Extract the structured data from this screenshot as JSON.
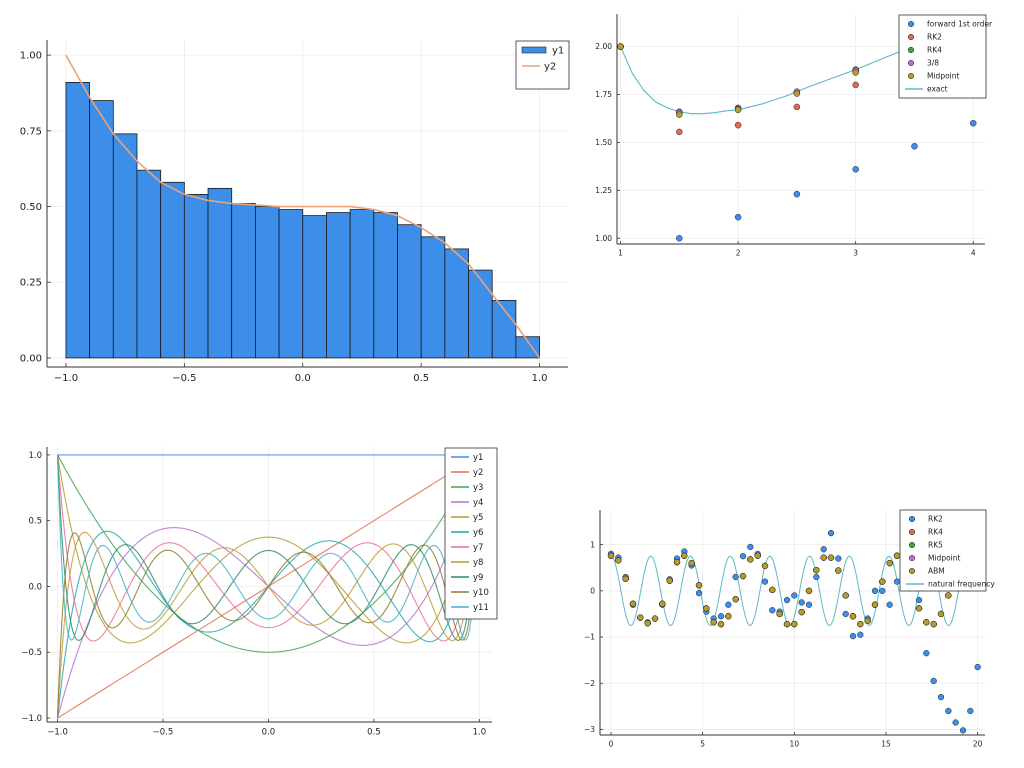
{
  "chart_data": [
    {
      "type": "bar",
      "title": "",
      "xlim": [
        -1.08,
        1.12
      ],
      "ylim": [
        -0.03,
        1.05
      ],
      "xticks": [
        -1.0,
        -0.5,
        0.0,
        0.5,
        1.0
      ],
      "xtick_labels": [
        "−1.0",
        "−0.5",
        "0.0",
        "0.5",
        "1.0"
      ],
      "yticks": [
        0.0,
        0.25,
        0.5,
        0.75,
        1.0
      ],
      "ytick_labels": [
        "0.00",
        "0.25",
        "0.50",
        "0.75",
        "1.00"
      ],
      "grid": true,
      "legend": "top-right",
      "bin_edges": [
        -1.0,
        -0.9,
        -0.8,
        -0.7,
        -0.6,
        -0.5,
        -0.4,
        -0.3,
        -0.2,
        -0.1,
        0.0,
        0.1,
        0.2,
        0.3,
        0.4,
        0.5,
        0.6,
        0.7,
        0.8,
        0.9,
        1.0
      ],
      "series": [
        {
          "name": "y1",
          "type": "bar",
          "values": [
            0.91,
            0.85,
            0.74,
            0.62,
            0.58,
            0.54,
            0.56,
            0.51,
            0.5,
            0.49,
            0.47,
            0.48,
            0.49,
            0.48,
            0.44,
            0.4,
            0.36,
            0.29,
            0.19,
            0.07
          ],
          "color": "#3d8ee8"
        },
        {
          "name": "y2",
          "type": "line",
          "x": [
            -1.0,
            -0.9,
            -0.8,
            -0.7,
            -0.6,
            -0.5,
            -0.4,
            -0.3,
            -0.2,
            -0.1,
            0.0,
            0.1,
            0.2,
            0.3,
            0.4,
            0.5,
            0.6,
            0.7,
            0.8,
            0.9,
            1.0
          ],
          "y": [
            1.0,
            0.86,
            0.74,
            0.65,
            0.58,
            0.54,
            0.52,
            0.51,
            0.505,
            0.5,
            0.5,
            0.5,
            0.5,
            0.49,
            0.47,
            0.43,
            0.38,
            0.31,
            0.21,
            0.11,
            0.0
          ],
          "color": "#e9a37a"
        }
      ]
    },
    {
      "type": "scatter",
      "title": "",
      "xlim": [
        0.97,
        4.1
      ],
      "ylim": [
        0.97,
        2.17
      ],
      "xticks": [
        1,
        2,
        3,
        4
      ],
      "xtick_labels": [
        "1",
        "2",
        "3",
        "4"
      ],
      "yticks": [
        1.0,
        1.25,
        1.5,
        1.75,
        2.0
      ],
      "ytick_labels": [
        "1.00",
        "1.25",
        "1.50",
        "1.75",
        "2.00"
      ],
      "grid": true,
      "legend": "top-right",
      "series": [
        {
          "name": "forward 1st order",
          "type": "scatter",
          "x": [
            1.0,
            1.5,
            2.0,
            2.5,
            3.0,
            3.5,
            4.0
          ],
          "y": [
            2.0,
            1.0,
            1.11,
            1.23,
            1.36,
            1.48,
            1.6
          ],
          "color": "#3d8ee8"
        },
        {
          "name": "RK2",
          "type": "scatter",
          "x": [
            1.0,
            1.5,
            2.0,
            2.5,
            3.0
          ],
          "y": [
            2.0,
            1.555,
            1.59,
            1.685,
            1.8
          ],
          "color": "#e26b4c"
        },
        {
          "name": "RK4",
          "type": "scatter",
          "x": [
            1.0,
            1.5,
            2.0,
            2.5,
            3.0
          ],
          "y": [
            2.0,
            1.66,
            1.68,
            1.76,
            1.88
          ],
          "color": "#3da34d"
        },
        {
          "name": "3/8",
          "type": "scatter",
          "x": [
            1.0,
            1.5,
            2.0,
            2.5,
            3.0
          ],
          "y": [
            2.0,
            1.655,
            1.675,
            1.765,
            1.875
          ],
          "color": "#b86fd6"
        },
        {
          "name": "Midpoint",
          "type": "scatter",
          "x": [
            1.0,
            1.5,
            2.0,
            2.5,
            3.0
          ],
          "y": [
            2.0,
            1.645,
            1.67,
            1.755,
            1.865
          ],
          "color": "#b59c2d"
        },
        {
          "name": "exact",
          "type": "line",
          "x": [
            1.0,
            1.1,
            1.2,
            1.3,
            1.4,
            1.5,
            1.6,
            1.7,
            1.8,
            1.9,
            2.0,
            2.2,
            2.4,
            2.6,
            2.8,
            3.0,
            3.2,
            3.4,
            3.6
          ],
          "y": [
            2.0,
            1.86,
            1.77,
            1.71,
            1.68,
            1.66,
            1.65,
            1.65,
            1.655,
            1.665,
            1.67,
            1.7,
            1.74,
            1.79,
            1.835,
            1.88,
            1.93,
            1.98,
            2.03
          ],
          "color": "#5db8c9"
        }
      ]
    },
    {
      "type": "line",
      "title": "",
      "xlim": [
        -1.05,
        1.06
      ],
      "ylim": [
        -1.03,
        1.06
      ],
      "xticks": [
        -1.0,
        -0.5,
        0.0,
        0.5,
        1.0
      ],
      "xtick_labels": [
        "−1.0",
        "−0.5",
        "0.0",
        "0.5",
        "1.0"
      ],
      "yticks": [
        -1.0,
        -0.5,
        0.0,
        0.5,
        1.0
      ],
      "ytick_labels": [
        "−1.0",
        "−0.5",
        "0.0",
        "0.5",
        "1.0"
      ],
      "grid": true,
      "legend": "top-right",
      "function": "Legendre polynomials P0..P10",
      "series": [
        {
          "name": "y1",
          "degree": 0,
          "color": "#3d8ee8"
        },
        {
          "name": "y2",
          "degree": 1,
          "color": "#e26b4c"
        },
        {
          "name": "y3",
          "degree": 2,
          "color": "#3da34d"
        },
        {
          "name": "y4",
          "degree": 3,
          "color": "#b86fd6"
        },
        {
          "name": "y5",
          "degree": 4,
          "color": "#b59c2d"
        },
        {
          "name": "y6",
          "degree": 5,
          "color": "#1fa8b0"
        },
        {
          "name": "y7",
          "degree": 6,
          "color": "#ef6d8f"
        },
        {
          "name": "y8",
          "degree": 7,
          "color": "#c49a2f"
        },
        {
          "name": "y9",
          "degree": 8,
          "color": "#2e8a6a"
        },
        {
          "name": "y10",
          "degree": 9,
          "color": "#8c7b28"
        },
        {
          "name": "y11",
          "degree": 10,
          "color": "#3fb3c4"
        }
      ]
    },
    {
      "type": "scatter",
      "title": "",
      "xlim": [
        -0.6,
        20.4
      ],
      "ylim": [
        -3.12,
        1.75
      ],
      "xticks": [
        0,
        5,
        10,
        15,
        20
      ],
      "xtick_labels": [
        "0",
        "5",
        "10",
        "15",
        "20"
      ],
      "yticks": [
        -3,
        -2,
        -1,
        0,
        1
      ],
      "ytick_labels": [
        "−3",
        "−2",
        "−1",
        "0",
        "1"
      ],
      "grid": true,
      "legend": "top-right",
      "series": [
        {
          "name": "RK2",
          "type": "scatter",
          "color": "#3d8ee8",
          "x": [
            0.0,
            0.4,
            0.8,
            1.2,
            1.6,
            2.0,
            2.4,
            2.8,
            3.2,
            3.6,
            4.0,
            4.4,
            4.8,
            5.2,
            5.6,
            6.0,
            6.4,
            6.8,
            7.2,
            7.6,
            8.0,
            8.4,
            8.8,
            9.2,
            9.6,
            10.0,
            10.4,
            10.8,
            11.2,
            11.6,
            12.0,
            12.4,
            12.8,
            13.2,
            13.6,
            14.0,
            14.4,
            14.8,
            15.2,
            15.6,
            16.0,
            16.4,
            16.8,
            17.2,
            17.6,
            18.0,
            18.4,
            18.8,
            19.2,
            19.6,
            20.0
          ],
          "y": [
            0.8,
            0.72,
            0.3,
            -0.3,
            -0.58,
            -0.68,
            -0.6,
            -0.3,
            0.25,
            0.7,
            0.85,
            0.55,
            -0.05,
            -0.45,
            -0.6,
            -0.55,
            -0.3,
            0.3,
            0.75,
            0.95,
            0.8,
            0.2,
            -0.42,
            -0.45,
            -0.2,
            -0.1,
            -0.25,
            -0.3,
            0.3,
            0.9,
            1.25,
            0.7,
            -0.5,
            -0.98,
            -0.95,
            -0.6,
            0.0,
            0.0,
            -0.3,
            0.2,
            0.95,
            0.85,
            -0.2,
            -1.35,
            -1.95,
            -2.3,
            -2.6,
            -2.85,
            -3.02,
            -2.6,
            -1.65
          ]
        },
        {
          "name": "RK4",
          "type": "scatter",
          "color": "#e26b4c",
          "x": [
            0.0,
            0.4,
            0.8,
            1.2,
            1.6,
            2.0,
            2.4,
            2.8,
            3.2,
            3.6,
            4.0,
            4.4,
            4.8,
            5.2,
            5.6,
            6.0,
            6.4,
            6.8,
            7.2,
            7.6,
            8.0,
            8.4,
            8.8,
            9.2,
            9.6,
            10.0,
            10.4,
            10.8,
            11.2,
            11.6,
            12.0,
            12.4,
            12.8,
            13.2,
            13.6,
            14.0,
            14.4,
            14.8,
            15.2,
            15.6,
            16.0,
            16.4,
            16.8,
            17.2,
            17.6,
            18.0,
            18.4,
            18.8,
            19.2
          ],
          "y": [
            0.76,
            0.66,
            0.26,
            -0.28,
            -0.58,
            -0.7,
            -0.6,
            -0.28,
            0.22,
            0.62,
            0.76,
            0.6,
            0.12,
            -0.38,
            -0.68,
            -0.72,
            -0.55,
            -0.18,
            0.32,
            0.68,
            0.76,
            0.54,
            0.02,
            -0.5,
            -0.72,
            -0.72,
            -0.46,
            0.0,
            0.45,
            0.72,
            0.72,
            0.44,
            -0.1,
            -0.55,
            -0.72,
            -0.65,
            -0.3,
            0.2,
            0.6,
            0.76,
            0.6,
            0.12,
            -0.38,
            -0.68,
            -0.72,
            -0.5,
            -0.1,
            0.35,
            0.7
          ]
        },
        {
          "name": "RK5",
          "type": "scatter",
          "color": "#3da34d",
          "x": [
            0.0,
            0.4,
            0.8,
            1.2,
            1.6,
            2.0,
            2.4,
            2.8,
            3.2,
            3.6,
            4.0,
            4.4,
            4.8,
            5.2,
            5.6,
            6.0,
            6.4,
            6.8,
            7.2,
            7.6,
            8.0,
            8.4,
            8.8,
            9.2,
            9.6,
            10.0,
            10.4,
            10.8,
            11.2,
            11.6,
            12.0,
            12.4,
            12.8,
            13.2,
            13.6,
            14.0,
            14.4,
            14.8,
            15.2,
            15.6,
            16.0,
            16.4,
            16.8,
            17.2,
            17.6,
            18.0,
            18.4,
            18.8,
            19.2
          ],
          "y": [
            0.76,
            0.66,
            0.26,
            -0.28,
            -0.58,
            -0.7,
            -0.6,
            -0.28,
            0.22,
            0.62,
            0.76,
            0.6,
            0.12,
            -0.38,
            -0.68,
            -0.72,
            -0.55,
            -0.18,
            0.32,
            0.68,
            0.76,
            0.54,
            0.02,
            -0.5,
            -0.72,
            -0.72,
            -0.46,
            0.0,
            0.45,
            0.72,
            0.72,
            0.44,
            -0.1,
            -0.55,
            -0.72,
            -0.65,
            -0.3,
            0.2,
            0.6,
            0.76,
            0.6,
            0.12,
            -0.38,
            -0.68,
            -0.72,
            -0.5,
            -0.1,
            0.35,
            0.7
          ]
        },
        {
          "name": "Midpoint",
          "type": "scatter",
          "color": "#b86fd6",
          "x": [
            0.0,
            0.4,
            0.8,
            1.2,
            1.6,
            2.0,
            2.4,
            2.8,
            3.2,
            3.6,
            4.0,
            4.4,
            4.8,
            5.2,
            5.6,
            6.0,
            6.4,
            6.8,
            7.2,
            7.6,
            8.0,
            8.4,
            8.8,
            9.2,
            9.6,
            10.0,
            10.4,
            10.8,
            11.2,
            11.6,
            12.0,
            12.4,
            12.8,
            13.2,
            13.6,
            14.0,
            14.4,
            14.8,
            15.2,
            15.6,
            16.0,
            16.4,
            16.8,
            17.2,
            17.6,
            18.0,
            18.4,
            18.8,
            19.2
          ],
          "y": [
            0.76,
            0.66,
            0.26,
            -0.28,
            -0.58,
            -0.7,
            -0.6,
            -0.28,
            0.22,
            0.62,
            0.76,
            0.6,
            0.12,
            -0.38,
            -0.68,
            -0.72,
            -0.55,
            -0.18,
            0.32,
            0.68,
            0.76,
            0.54,
            0.02,
            -0.5,
            -0.72,
            -0.72,
            -0.46,
            0.0,
            0.45,
            0.72,
            0.72,
            0.44,
            -0.1,
            -0.55,
            -0.72,
            -0.65,
            -0.3,
            0.2,
            0.6,
            0.76,
            0.6,
            0.12,
            -0.38,
            -0.68,
            -0.72,
            -0.5,
            -0.1,
            0.35,
            0.7
          ]
        },
        {
          "name": "ABM",
          "type": "scatter",
          "color": "#b59c2d",
          "x": [
            0.0,
            0.4,
            0.8,
            1.2,
            1.6,
            2.0,
            2.4,
            2.8,
            3.2,
            3.6,
            4.0,
            4.4,
            4.8,
            5.2,
            5.6,
            6.0,
            6.4,
            6.8,
            7.2,
            7.6,
            8.0,
            8.4,
            8.8,
            9.2,
            9.6,
            10.0,
            10.4,
            10.8,
            11.2,
            11.6,
            12.0,
            12.4,
            12.8,
            13.2,
            13.6,
            14.0,
            14.4,
            14.8,
            15.2,
            15.6,
            16.0,
            16.4,
            16.8,
            17.2,
            17.6,
            18.0,
            18.4,
            18.8,
            19.2
          ],
          "y": [
            0.76,
            0.66,
            0.26,
            -0.28,
            -0.58,
            -0.7,
            -0.6,
            -0.28,
            0.22,
            0.62,
            0.76,
            0.6,
            0.12,
            -0.38,
            -0.68,
            -0.72,
            -0.55,
            -0.18,
            0.32,
            0.68,
            0.76,
            0.54,
            0.02,
            -0.5,
            -0.72,
            -0.72,
            -0.46,
            0.0,
            0.45,
            0.72,
            0.72,
            0.44,
            -0.1,
            -0.55,
            -0.72,
            -0.65,
            -0.3,
            0.2,
            0.6,
            0.76,
            0.6,
            0.12,
            -0.38,
            -0.68,
            -0.72,
            -0.5,
            -0.1,
            0.35,
            0.7
          ]
        },
        {
          "name": "natural frequency",
          "type": "line",
          "color": "#5db8c9",
          "function": "0.75*cos(2.9*t)",
          "x_range": [
            0,
            19.5
          ]
        }
      ]
    }
  ]
}
